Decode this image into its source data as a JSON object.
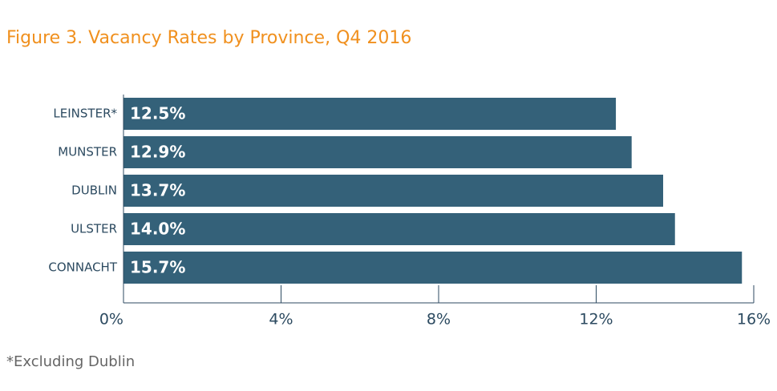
{
  "chart_data": {
    "type": "barh",
    "title": "Figure 3. Vacancy Rates by Province, Q4 2016",
    "categories": [
      "LEINSTER*",
      "MUNSTER",
      "DUBLIN",
      "ULSTER",
      "CONNACHT"
    ],
    "values": [
      12.5,
      12.9,
      13.7,
      14.0,
      15.7
    ],
    "value_labels": [
      "12.5%",
      "12.9%",
      "13.7%",
      "14.0%",
      "15.7%"
    ],
    "color": "#346179",
    "xlim": [
      0,
      16
    ],
    "xticks": [
      {
        "value": 0,
        "label": "0%"
      },
      {
        "value": 4,
        "label": "4%"
      },
      {
        "value": 8,
        "label": "8%"
      },
      {
        "value": 12,
        "label": "12%"
      },
      {
        "value": 16,
        "label": "16%"
      }
    ],
    "footnote": "*Excluding Dublin"
  }
}
